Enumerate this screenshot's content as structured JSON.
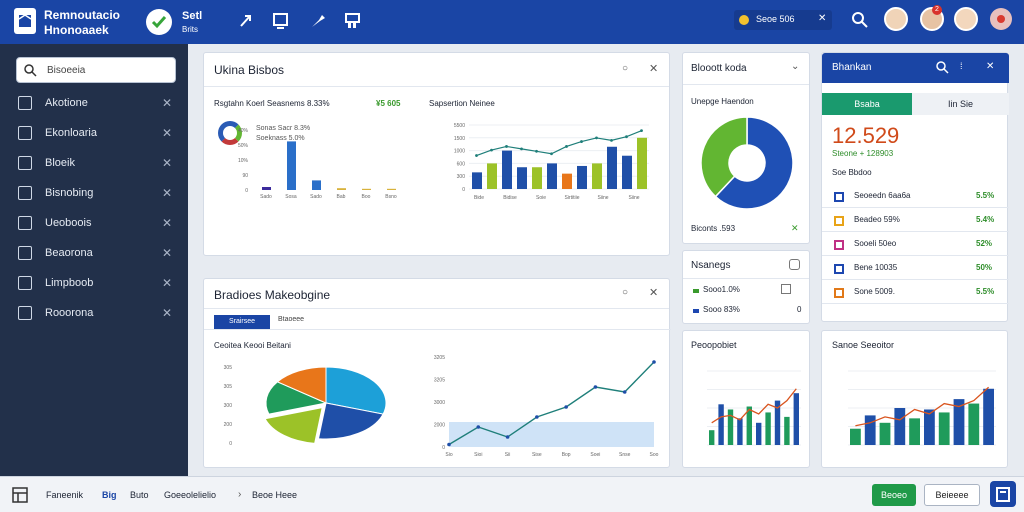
{
  "app": {
    "title_line1": "Remnoutacio",
    "title_line2": "Hnonoaaek",
    "sub_title": "Setl",
    "sub_title2": "Brits"
  },
  "topbar": {
    "status_label": "Seoe 506",
    "notif_count": "2"
  },
  "search": {
    "placeholder": "Bisoeeia"
  },
  "sidebar": {
    "items": [
      {
        "label": "Akotione",
        "icon": "grid-icon"
      },
      {
        "label": "Ekonloaria",
        "icon": "briefcase-icon"
      },
      {
        "label": "Bloeik",
        "icon": "file-icon"
      },
      {
        "label": "Bisnobing",
        "icon": "folder-icon"
      },
      {
        "label": "Ueoboois",
        "icon": "table-icon"
      },
      {
        "label": "Beaorona",
        "icon": "diamond-icon"
      },
      {
        "label": "Limpboob",
        "icon": "people-icon"
      },
      {
        "label": "Rooorona",
        "icon": "gear-icon"
      }
    ]
  },
  "panel1": {
    "title": "Ukina Bisbos",
    "left_heading": "Rsgtahn Koerl Seasnems 8.33%",
    "left_badge": "¥5 605",
    "legend": [
      "Sonas Sacr 8.3%",
      "Soeknass 5.0%"
    ],
    "right_heading": "Sapsertion Neinee",
    "chart_data": [
      {
        "type": "bar",
        "categories": [
          "Sado",
          "Sosa",
          "Sado",
          "Bab",
          "Boo",
          "Bsno"
        ],
        "series": [
          {
            "values": [
              5,
              81,
              16,
              3,
              2,
              2
            ]
          }
        ],
        "yticks": [
          "0",
          "90",
          "10%",
          "50%",
          "40%"
        ]
      },
      {
        "type": "bar+line",
        "categories": [
          "Bide",
          "Bidise",
          "Soie",
          "Sirtitiie",
          "Siine",
          "Siine"
        ],
        "bars": [
          26,
          40,
          60,
          34,
          34,
          40,
          24,
          36,
          40,
          66,
          52,
          80
        ],
        "line": [
          55,
          64,
          70,
          66,
          62,
          58,
          70,
          78,
          84,
          80,
          86,
          96
        ],
        "yticks": [
          "0",
          "300",
          "600",
          "1000",
          "1500",
          "5500"
        ]
      }
    ]
  },
  "panel_donut": {
    "title": "Blooott koda",
    "label": "Unepge Haendon",
    "footer": "Biconts .593",
    "chart_data": {
      "type": "pie",
      "values": [
        62,
        38
      ],
      "colors": [
        "#1f50b5",
        "#62b632"
      ]
    }
  },
  "panel_ratings": {
    "title": "Nsanegs",
    "rows": [
      {
        "label": "Sooo1.0%",
        "val": ""
      },
      {
        "label": "Sooo 83%",
        "val": "0"
      }
    ]
  },
  "panel_right": {
    "title": "Bhankan",
    "tab_active": "Bsaba",
    "tab_other": "Iin Sie",
    "big_value": "12.529",
    "sub_value": "Steone + 128903",
    "sub_label": "Soe Bbdoo",
    "items": [
      {
        "label": "Seoeedn 6aa6a",
        "value": "5.5%",
        "color": "#1d47b0"
      },
      {
        "label": "Beadeo 59%",
        "value": "5.4%",
        "color": "#e8a317"
      },
      {
        "label": "Sooeli 50eo",
        "value": "52%",
        "color": "#c03184"
      },
      {
        "label": "Bene 10035",
        "value": "50%",
        "color": "#1d47b0"
      },
      {
        "label": "Sone 5009.",
        "value": "5.5%",
        "color": "#e17919"
      }
    ]
  },
  "panel_bottom": {
    "title": "Bradioes Makeobgine",
    "tab1": "Srairsee",
    "tab2": "Btaoeee",
    "pie_heading": "Ceoitea Keooi Beitani",
    "pie_yticks": [
      "0",
      "200",
      "300",
      "305",
      "305"
    ],
    "chart_data": [
      {
        "type": "pie",
        "values": [
          30,
          22,
          18,
          15,
          15
        ],
        "colors": [
          "#1da0d8",
          "#1f4fa8",
          "#9cc228",
          "#1f9b5b",
          "#e8761a"
        ]
      },
      {
        "type": "area",
        "x": [
          "Sio",
          "Sioi",
          "Sii",
          "Sise",
          "Bop",
          "Soei",
          "Snse",
          "Soo"
        ],
        "values": [
          5,
          40,
          20,
          60,
          80,
          120,
          110,
          170
        ],
        "yticks": [
          "0",
          "2000",
          "3000",
          "3205",
          "3205"
        ]
      }
    ]
  },
  "panel_small_bars": {
    "title": "Peoopobiet",
    "chart_data": {
      "type": "bar+line",
      "bars": [
        20,
        55,
        48,
        36,
        52,
        30,
        44,
        60,
        38,
        70
      ],
      "line": [
        30,
        38,
        40,
        34,
        48,
        42,
        55,
        50,
        60,
        76
      ]
    }
  },
  "panel_small_bars2": {
    "title": "Sanoe Seeoitor",
    "chart_data": {
      "type": "bar+line",
      "bars": [
        22,
        40,
        30,
        50,
        36,
        48,
        44,
        62,
        56,
        76
      ],
      "line": [
        26,
        30,
        38,
        34,
        48,
        42,
        56,
        52,
        60,
        78
      ]
    }
  },
  "bottombar": {
    "items": [
      "Faneenik",
      "Big",
      "Buto",
      "Goeeolelielio",
      "Beoe Heee"
    ],
    "primary_btn": "Beoeo",
    "secondary_btn": "Beieeee"
  }
}
